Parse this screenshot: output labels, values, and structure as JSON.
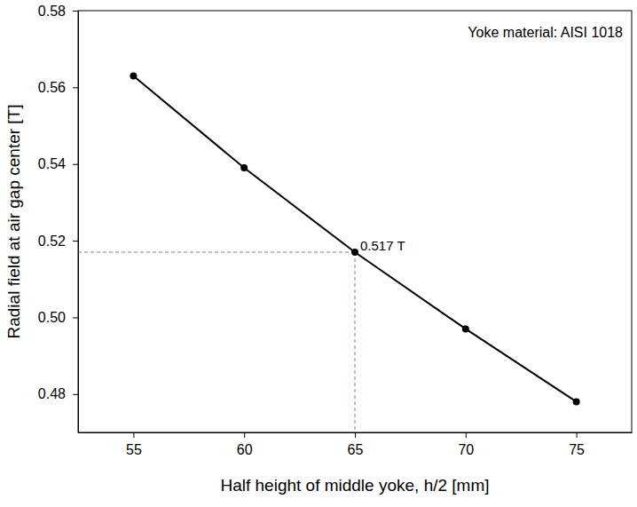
{
  "chart_data": {
    "type": "line",
    "x_label": "Half height of middle yoke, h/2 [mm]",
    "y_label": "Radial field at air gap center [T]",
    "x": [
      55,
      60,
      65,
      70,
      75
    ],
    "series": [
      {
        "name": "Yoke material: AISI 1018",
        "color": "#000000",
        "values": [
          0.563,
          0.539,
          0.517,
          0.497,
          0.478
        ],
        "marker": "circle",
        "line_style": "solid"
      }
    ],
    "xlim": [
      52.5,
      77.5
    ],
    "xticks": [
      55,
      60,
      65,
      70,
      75
    ],
    "ylim": [
      0.47,
      0.58
    ],
    "yticks": [
      0.48,
      {
        "value": 0.5,
        "label": "0.50"
      },
      0.52,
      0.54,
      0.56,
      0.58
    ],
    "annotations": [
      {
        "text": "0.517 T",
        "x": 65,
        "y": 0.517,
        "color": "#7b3fbf",
        "line_style": "dashed"
      }
    ],
    "legend": "top-right",
    "grid": false
  }
}
